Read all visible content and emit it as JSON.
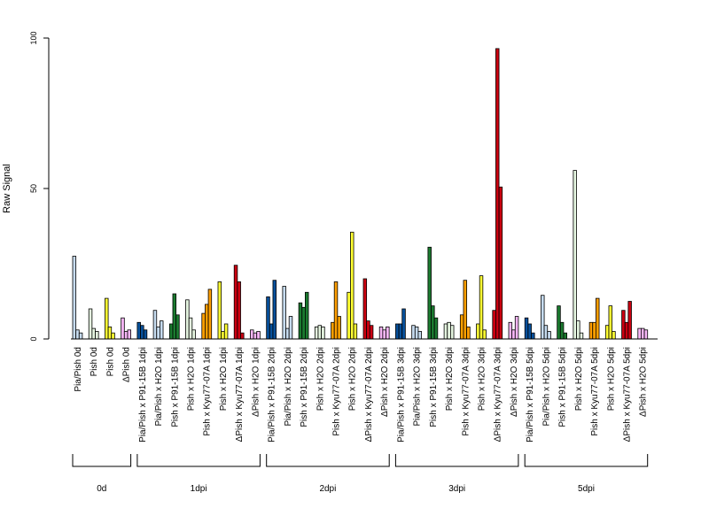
{
  "chart_data": {
    "type": "bar",
    "title": "",
    "xlabel": "",
    "ylabel": "Raw Signal",
    "ylim": [
      0,
      100
    ],
    "yticks": [
      0,
      50,
      100
    ],
    "grid": false,
    "legend": "none",
    "categories": [
      "Pia/Pish 0d",
      "Pish 0d",
      "Pish 0d",
      "ΔPish 0d",
      "Pia/Pish x P91-15B 1dpi",
      "Pia/Pish x H2O 1dpi",
      "Pish x P91-15B 1dpi",
      "Pish x H2O 1dpi",
      "Pish x Kyu77-07A 1dpi",
      "Pish x H2O 1dpi",
      "ΔPish x Kyu77-07A 1dpi",
      "ΔPish x H2O 1dpi",
      "Pia/Pish x P91-15B 2dpi",
      "Pia/Pish x H2O 2dpi",
      "Pish x P91-15B 2dpi",
      "Pish x H2O 2dpi",
      "Pish x Kyu77-07A 2dpi",
      "Pish x H2O 2dpi",
      "ΔPish x Kyu77-07A 2dpi",
      "ΔPish x H2O 2dpi",
      "Pia/Pish x P91-15B 3dpi",
      "Pia/Pish x H2O 3dpi",
      "Pish x P91-15B 3dpi",
      "Pish x H2O 3dpi",
      "Pish x Kyu77-07A 3dpi",
      "Pish x H2O 3dpi",
      "ΔPish x Kyu77-07A 3dpi",
      "ΔPish x H2O 3dpi",
      "Pia/Pish x P91-15B 5dpi",
      "Pia/Pish x H2O 5dpi",
      "Pish x P91-15B 5dpi",
      "Pish x H2O 5dpi",
      "Pish x Kyu77-07A 5dpi",
      "Pish x H2O 5dpi",
      "ΔPish x Kyu77-07A 5dpi",
      "ΔPish x H2O 5dpi"
    ],
    "category_colors": [
      "#c6dbef",
      "#e5f5e0",
      "#ffff33",
      "#f7b6f7",
      "#08519c",
      "#c6dbef",
      "#1b7a2f",
      "#e5f5e0",
      "#ff9f00",
      "#ffff33",
      "#cc0011",
      "#f7b6f7",
      "#08519c",
      "#c6dbef",
      "#1b7a2f",
      "#e5f5e0",
      "#ff9f00",
      "#ffff33",
      "#cc0011",
      "#f7b6f7",
      "#08519c",
      "#c6dbef",
      "#1b7a2f",
      "#e5f5e0",
      "#ff9f00",
      "#ffff33",
      "#cc0011",
      "#f7b6f7",
      "#08519c",
      "#c6dbef",
      "#1b7a2f",
      "#e5f5e0",
      "#ff9f00",
      "#ffff33",
      "#cc0011",
      "#f7b6f7"
    ],
    "replicates_per_category": 3,
    "values": [
      [
        27.5,
        3,
        2
      ],
      [
        10,
        3.5,
        2.5
      ],
      [
        13.5,
        4,
        2
      ],
      [
        7,
        2.5,
        3
      ],
      [
        5.5,
        4.5,
        3
      ],
      [
        9.5,
        4,
        6
      ],
      [
        5,
        15,
        8
      ],
      [
        13,
        7,
        3
      ],
      [
        8.5,
        11.5,
        16.5
      ],
      [
        19,
        2.5,
        5
      ],
      [
        24.5,
        19,
        2
      ],
      [
        3,
        2,
        2.5
      ],
      [
        14,
        5,
        19.5
      ],
      [
        17.5,
        3.5,
        7.5
      ],
      [
        12,
        10.5,
        15.5
      ],
      [
        4,
        4.5,
        4
      ],
      [
        5.5,
        19,
        7.5
      ],
      [
        15.5,
        35.5,
        5
      ],
      [
        20,
        6,
        4.5
      ],
      [
        4,
        3,
        4
      ],
      [
        5,
        5,
        10
      ],
      [
        4.5,
        4,
        2.5
      ],
      [
        30.5,
        11,
        7
      ],
      [
        5,
        5.5,
        4.5
      ],
      [
        8,
        19.5,
        4
      ],
      [
        5,
        21,
        3
      ],
      [
        9.5,
        96.5,
        50.5
      ],
      [
        5.5,
        3,
        7.5
      ],
      [
        7,
        5,
        2
      ],
      [
        14.5,
        4.5,
        2.5
      ],
      [
        11,
        5.5,
        2
      ],
      [
        56,
        6,
        2
      ],
      [
        5.5,
        5.5,
        13.5
      ],
      [
        4.5,
        11,
        2.5
      ],
      [
        9.5,
        5.5,
        12.5
      ],
      [
        3.5,
        3.5,
        3
      ]
    ],
    "group_labels": [
      "0d",
      "1dpi",
      "2dpi",
      "3dpi",
      "5dpi"
    ],
    "group_sizes": [
      4,
      8,
      8,
      8,
      8
    ]
  }
}
